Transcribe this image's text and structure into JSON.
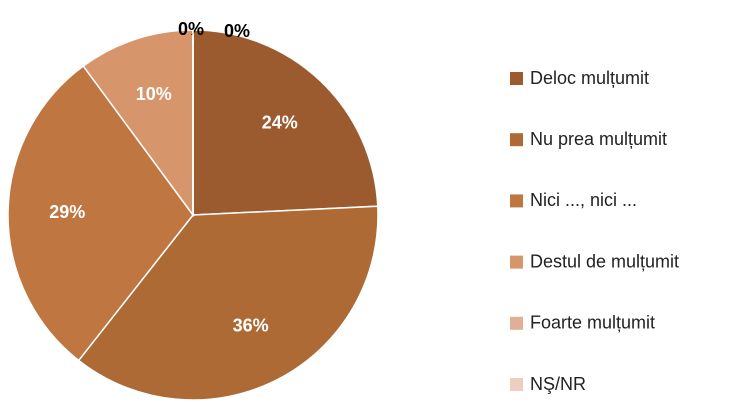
{
  "chart_data": {
    "type": "pie",
    "categories": [
      "Deloc mulțumit",
      "Nu prea mulțumit",
      "Nici ..., nici ...",
      "Destul de mulțumit",
      "Foarte mulțumit",
      "NŞ/NR"
    ],
    "values": [
      24,
      36,
      29,
      10,
      0,
      0
    ],
    "value_labels": [
      "24%",
      "36%",
      "29%",
      "10%",
      "0%",
      "0%"
    ],
    "colors": [
      "#9c5b2e",
      "#ad6a35",
      "#c07640",
      "#d6956b",
      "#e0b096",
      "#edcfc2"
    ],
    "legend": "right"
  }
}
